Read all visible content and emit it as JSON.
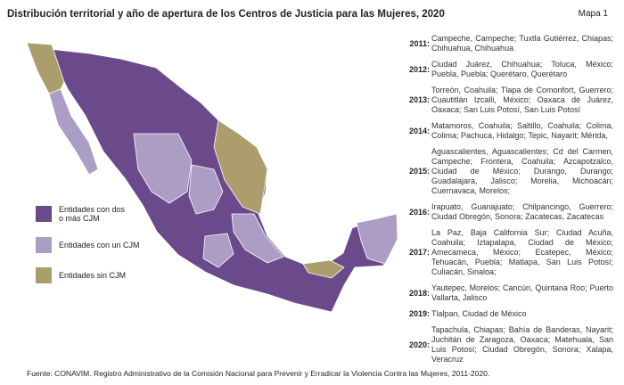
{
  "title": "Distribución territorial y año de apertura de los Centros de Justicia para las Mujeres, 2020",
  "map_label": "Mapa 1",
  "colors": {
    "two_or_more": "#6b4a8b",
    "one": "#ab9dc4",
    "none": "#ab9d6c"
  },
  "legend": [
    {
      "label": "Entidades con dos o más CJM",
      "color": "#6b4a8b"
    },
    {
      "label": "Entidades con un CJM",
      "color": "#ab9dc4"
    },
    {
      "label": "Entidades sin CJM",
      "color": "#ab9d6c"
    }
  ],
  "years": [
    {
      "year": "2011:",
      "text": "Campeche, Campeche; Tuxtla Gutiérrez, Chiapas; Chihuahua, Chihuahua"
    },
    {
      "year": "2012:",
      "text": "Ciudad Juárez, Chihuahua; Toluca, México; Puebla, Puebla; Querétaro, Querétaro"
    },
    {
      "year": "2013:",
      "text": "Torreón, Coahuila; Tlapa de Comonfort, Guerrero; Cuautitlán Izcalli, México; Oaxaca de Juárez, Oaxaca; San Luis Potosí, San Luis Potosí"
    },
    {
      "year": "2014:",
      "text": "Matamoros, Coahuila; Saltillo, Coahuila; Colima, Colima; Pachuca, Hidalgo; Tepic, Nayarit; Mérida,"
    },
    {
      "year": "2015:",
      "text": "Aguascalientes, Aguascalientes; Cd del Carmen, Campeche; Frontera, Coahuila; Azcapotzalco, Ciudad de México; Durango, Durango; Guadalajara, Jalisco; Morelia, Michoacán; Cuernavaca, Morelos;"
    },
    {
      "year": "2016:",
      "text": "Irapuato, Guanajuato; Chilpancingo, Guerrero; Ciudad Obregón, Sonora; Zacatecas, Zacatecas"
    },
    {
      "year": "2017:",
      "text": "La Paz, Baja California Sur; Ciudad Acuña, Coahuila; Iztapalapa, Ciudad de México; Amecameca, México; Ecatepec, México; Tehuacán, Puebla; Matlapa, San Luis Potosí; Culiacán, Sinaloa;"
    },
    {
      "year": "2018:",
      "text": "Yautepec, Morelos; Cancún, Quintana Roo; Puerto Vallarta, Jalisco"
    },
    {
      "year": "2019:",
      "text": "Tlalpan, Ciudad de México"
    },
    {
      "year": "2020:",
      "text": "Tapachula, Chiapas; Bahía de Banderas, Nayarit; Juchitán de Zaragoza, Oaxaca; Matehuala, San Luis Potosí; Ciudad Obregón, Sonora; Xalapa, Veracruz"
    }
  ],
  "source": "Fuente: CONAVIM. Registro Administrativo de la Comisión Nacional para Prevenir y Erradicar la Violencia Contra las Mujeres, 2011-2020."
}
